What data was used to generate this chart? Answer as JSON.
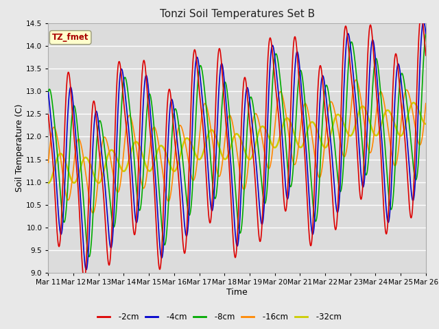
{
  "title": "Tonzi Soil Temperatures Set B",
  "xlabel": "Time",
  "ylabel": "Soil Temperature (C)",
  "ylim": [
    9.0,
    14.5
  ],
  "xlim": [
    0,
    360
  ],
  "series": {
    "-2cm": {
      "color": "#dd0000",
      "lw": 1.2
    },
    "-4cm": {
      "color": "#0000cc",
      "lw": 1.2
    },
    "-8cm": {
      "color": "#00aa00",
      "lw": 1.2
    },
    "-16cm": {
      "color": "#ff8800",
      "lw": 1.2
    },
    "-32cm": {
      "color": "#cccc00",
      "lw": 1.8
    }
  },
  "xtick_labels": [
    "Mar 11",
    "Mar 12",
    "Mar 13",
    "Mar 14",
    "Mar 15",
    "Mar 16",
    "Mar 17",
    "Mar 18",
    "Mar 19",
    "Mar 20",
    "Mar 21",
    "Mar 22",
    "Mar 23",
    "Mar 24",
    "Mar 25",
    "Mar 26"
  ],
  "xtick_positions": [
    0,
    24,
    48,
    72,
    96,
    120,
    144,
    168,
    192,
    216,
    240,
    264,
    288,
    312,
    336,
    360
  ],
  "label_box": "TZ_fmet",
  "label_box_color": "#ffffcc",
  "label_box_text_color": "#aa0000",
  "fig_bg": "#e8e8e8",
  "plot_bg": "#dcdcdc"
}
